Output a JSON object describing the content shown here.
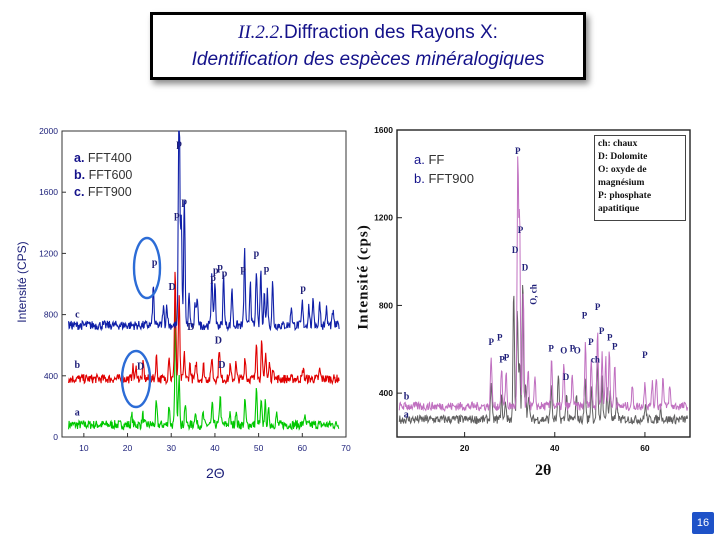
{
  "slide": {
    "title_num": "II.2.2.",
    "title_rest": "Diffraction des Rayons X:",
    "subtitle": "Identification des espèces minéralogiques",
    "page_number": "16",
    "accent_color": "#14128a"
  },
  "chart_data": [
    {
      "type": "line",
      "xlabel": "2Θ",
      "ylabel": "Intensité (CPS)",
      "xlim": [
        5,
        70
      ],
      "ylim": [
        0,
        2000
      ],
      "x_ticks": [
        "10",
        "20",
        "30",
        "40",
        "50",
        "60",
        "70"
      ],
      "y_ticks": [
        "0",
        "400",
        "800",
        "1200",
        "1600",
        "2000"
      ],
      "legend": [
        {
          "key": "a.",
          "label": "FFT400"
        },
        {
          "key": "b.",
          "label": "FFT600"
        },
        {
          "key": "c.",
          "label": "FFT900"
        }
      ],
      "series": [
        {
          "label": "a",
          "color": "#00c800",
          "baseline": 80,
          "peaks": [
            [
              21,
              60
            ],
            [
              23.5,
              70
            ],
            [
              26.6,
              140
            ],
            [
              29.5,
              130
            ],
            [
              31.0,
              760
            ],
            [
              31.8,
              350
            ],
            [
              33.2,
              140
            ],
            [
              35.5,
              90
            ],
            [
              37.3,
              70
            ],
            [
              39.4,
              130
            ],
            [
              41.2,
              200
            ],
            [
              43.4,
              70
            ],
            [
              44.8,
              90
            ],
            [
              46.9,
              160
            ],
            [
              49.5,
              230
            ],
            [
              50.6,
              150
            ],
            [
              51.5,
              140
            ],
            [
              52.3,
              90
            ],
            [
              54.1,
              70
            ],
            [
              60.5,
              60
            ]
          ]
        },
        {
          "label": "b",
          "color": "#e00000",
          "baseline": 380,
          "peaks": [
            [
              21.2,
              80
            ],
            [
              22.0,
              70
            ],
            [
              23.6,
              100
            ],
            [
              26.6,
              150
            ],
            [
              29.5,
              160
            ],
            [
              30.9,
              720
            ],
            [
              31.8,
              560
            ],
            [
              33.0,
              160
            ],
            [
              34.3,
              100
            ],
            [
              35.7,
              110
            ],
            [
              37.4,
              90
            ],
            [
              39.3,
              150
            ],
            [
              41.0,
              210
            ],
            [
              43.5,
              80
            ],
            [
              44.8,
              100
            ],
            [
              46.9,
              150
            ],
            [
              49.5,
              260
            ],
            [
              50.7,
              230
            ],
            [
              51.6,
              180
            ],
            [
              52.5,
              100
            ],
            [
              53.4,
              80
            ],
            [
              60.2,
              70
            ],
            [
              64,
              60
            ]
          ]
        },
        {
          "label": "c",
          "color": "#1020a8",
          "baseline": 730,
          "peaks": [
            [
              25.9,
              250
            ],
            [
              28.2,
              120
            ],
            [
              29.0,
              140
            ],
            [
              31.8,
              1800
            ],
            [
              32.3,
              730
            ],
            [
              33.0,
              830
            ],
            [
              34.1,
              200
            ],
            [
              35.5,
              140
            ],
            [
              36.0,
              180
            ],
            [
              39.3,
              360
            ],
            [
              40.0,
              280
            ],
            [
              42.0,
              320
            ],
            [
              43.9,
              250
            ],
            [
              46.8,
              490
            ],
            [
              48.1,
              300
            ],
            [
              49.5,
              370
            ],
            [
              50.5,
              360
            ],
            [
              51.3,
              220
            ],
            [
              52.0,
              230
            ],
            [
              53.2,
              280
            ],
            [
              57.5,
              130
            ],
            [
              60.0,
              150
            ],
            [
              61.5,
              130
            ],
            [
              62.5,
              170
            ],
            [
              64.0,
              160
            ],
            [
              65.5,
              110
            ],
            [
              67.0,
              90
            ]
          ]
        }
      ],
      "peak_labels": [
        "p",
        "p",
        "p",
        "p",
        "p",
        "p",
        "p",
        "p",
        "p",
        "p",
        "p",
        "D",
        "D",
        "D",
        "D"
      ],
      "curve_labels": [
        "a",
        "b",
        "c"
      ]
    },
    {
      "type": "line",
      "xlabel": "2θ",
      "ylabel": "Intensité (cps)",
      "xlim": [
        5,
        70
      ],
      "ylim": [
        200,
        1600
      ],
      "x_ticks": [
        "20",
        "40",
        "60"
      ],
      "y_ticks": [
        "400",
        "800",
        "1200",
        "1600"
      ],
      "legend": [
        {
          "key": "a.",
          "label": "FF"
        },
        {
          "key": "b.",
          "label": "FFT900"
        }
      ],
      "mineral_key": [
        "ch: chaux",
        "D: Dolomite",
        "O: oxyde de magnésium",
        "P: phosphate apatitique"
      ],
      "series": [
        {
          "label": "a",
          "color": "#606060",
          "baseline": 280,
          "peaks": [
            [
              25.9,
              170
            ],
            [
              28.2,
              100
            ],
            [
              29.1,
              80
            ],
            [
              30.9,
              600
            ],
            [
              31.7,
              500
            ],
            [
              32.2,
              270
            ],
            [
              32.9,
              640
            ],
            [
              33.5,
              180
            ],
            [
              34.2,
              120
            ],
            [
              39.2,
              160
            ],
            [
              40.8,
              200
            ],
            [
              42.6,
              120
            ],
            [
              44.8,
              100
            ],
            [
              46.7,
              200
            ],
            [
              48.1,
              150
            ],
            [
              49.4,
              260
            ],
            [
              50.5,
              190
            ],
            [
              51.6,
              140
            ],
            [
              52.3,
              130
            ],
            [
              53.8,
              90
            ],
            [
              60.1,
              70
            ],
            [
              63.5,
              60
            ]
          ]
        },
        {
          "label": "b",
          "color": "#c070c0",
          "baseline": 340,
          "peaks": [
            [
              25.9,
              230
            ],
            [
              28.2,
              170
            ],
            [
              29.2,
              160
            ],
            [
              31.8,
              1120
            ],
            [
              32.2,
              850
            ],
            [
              33.0,
              520
            ],
            [
              34.1,
              180
            ],
            [
              35.6,
              120
            ],
            [
              39.3,
              230
            ],
            [
              42.0,
              190
            ],
            [
              43.9,
              150
            ],
            [
              46.8,
              280
            ],
            [
              48.1,
              220
            ],
            [
              49.5,
              350
            ],
            [
              50.5,
              250
            ],
            [
              51.3,
              220
            ],
            [
              52.1,
              260
            ],
            [
              53.3,
              200
            ],
            [
              57.2,
              90
            ],
            [
              60.0,
              120
            ],
            [
              61.6,
              110
            ],
            [
              62.5,
              140
            ],
            [
              64.0,
              130
            ],
            [
              65.5,
              90
            ]
          ]
        }
      ],
      "peak_labels": [
        "P",
        "P",
        "P",
        "P",
        "P",
        "P",
        "P",
        "P",
        "P",
        "P",
        "P",
        "P",
        "P",
        "P",
        "P",
        "D",
        "D",
        "D",
        "O",
        "O",
        "ch",
        "O, ch"
      ],
      "curve_labels": [
        "a",
        "b"
      ]
    }
  ]
}
